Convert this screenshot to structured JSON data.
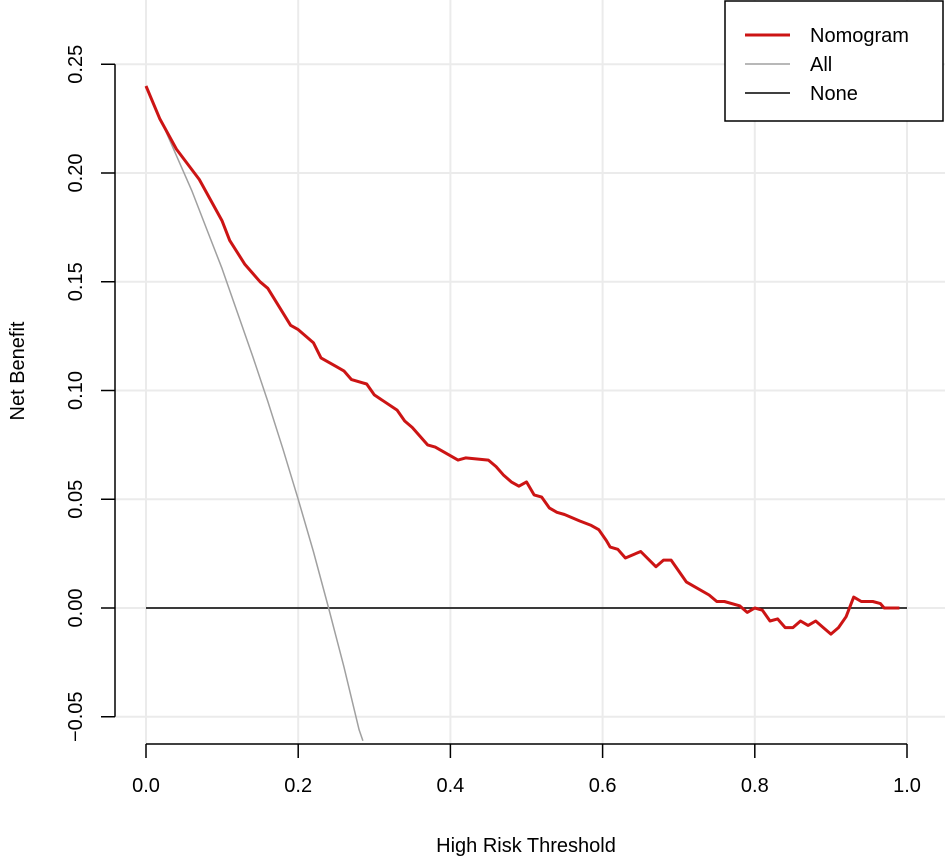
{
  "chart_data": {
    "type": "line",
    "title": "",
    "xlabel": "High Risk Threshold",
    "ylabel": "Net Benefit",
    "xlim": [
      0.0,
      1.0
    ],
    "ylim": [
      -0.06,
      0.25
    ],
    "x_ticks": [
      "0.0",
      "0.2",
      "0.4",
      "0.6",
      "0.8",
      "1.0"
    ],
    "x_tick_values": [
      0.0,
      0.2,
      0.4,
      0.6,
      0.8,
      1.0
    ],
    "y_ticks": [
      "-0.05",
      "0.00",
      "0.05",
      "0.10",
      "0.15",
      "0.20",
      "0.25"
    ],
    "y_tick_values": [
      -0.05,
      0.0,
      0.05,
      0.1,
      0.15,
      0.2,
      0.25
    ],
    "grid": true,
    "legend_position": "top-right",
    "legend": [
      {
        "name": "Nomogram",
        "color": "#CC1414",
        "width": 3
      },
      {
        "name": "All",
        "color": "#A0A0A0",
        "width": 1.5
      },
      {
        "name": "None",
        "color": "#000000",
        "width": 1.5
      }
    ],
    "series": [
      {
        "name": "Nomogram",
        "color": "#CC1414",
        "x": [
          0.0,
          0.018,
          0.04,
          0.07,
          0.1,
          0.11,
          0.13,
          0.15,
          0.16,
          0.19,
          0.2,
          0.22,
          0.23,
          0.25,
          0.26,
          0.27,
          0.29,
          0.3,
          0.33,
          0.34,
          0.35,
          0.37,
          0.38,
          0.41,
          0.42,
          0.45,
          0.46,
          0.47,
          0.48,
          0.49,
          0.5,
          0.51,
          0.52,
          0.53,
          0.54,
          0.55,
          0.57,
          0.585,
          0.595,
          0.605,
          0.61,
          0.62,
          0.63,
          0.65,
          0.67,
          0.68,
          0.69,
          0.71,
          0.72,
          0.74,
          0.75,
          0.76,
          0.78,
          0.79,
          0.8,
          0.81,
          0.82,
          0.83,
          0.84,
          0.85,
          0.86,
          0.87,
          0.88,
          0.89,
          0.9,
          0.91,
          0.92,
          0.93,
          0.94,
          0.955,
          0.965,
          0.97,
          0.99
        ],
        "values": [
          0.24,
          0.225,
          0.211,
          0.197,
          0.178,
          0.169,
          0.158,
          0.15,
          0.147,
          0.13,
          0.128,
          0.122,
          0.115,
          0.111,
          0.109,
          0.105,
          0.103,
          0.098,
          0.091,
          0.086,
          0.083,
          0.075,
          0.074,
          0.068,
          0.069,
          0.068,
          0.065,
          0.061,
          0.058,
          0.056,
          0.058,
          0.052,
          0.051,
          0.046,
          0.044,
          0.043,
          0.04,
          0.038,
          0.036,
          0.031,
          0.028,
          0.027,
          0.023,
          0.026,
          0.019,
          0.022,
          0.022,
          0.012,
          0.01,
          0.006,
          0.003,
          0.003,
          0.001,
          -0.002,
          0.0,
          -0.001,
          -0.006,
          -0.005,
          -0.009,
          -0.009,
          -0.006,
          -0.008,
          -0.006,
          -0.009,
          -0.012,
          -0.009,
          -0.004,
          0.005,
          0.003,
          0.003,
          0.002,
          0.0,
          0.0
        ]
      },
      {
        "name": "All",
        "color": "#A0A0A0",
        "x": [
          0.0,
          0.04,
          0.06,
          0.08,
          0.1,
          0.12,
          0.14,
          0.16,
          0.18,
          0.2,
          0.22,
          0.24,
          0.26,
          0.28,
          0.285
        ],
        "values": [
          0.24,
          0.208,
          0.192,
          0.174,
          0.156,
          0.136,
          0.116,
          0.095,
          0.073,
          0.05,
          0.026,
          0.0,
          -0.027,
          -0.056,
          -0.061
        ]
      },
      {
        "name": "None",
        "color": "#000000",
        "x": [
          0.0,
          1.0
        ],
        "values": [
          0.0,
          0.0
        ]
      }
    ]
  }
}
